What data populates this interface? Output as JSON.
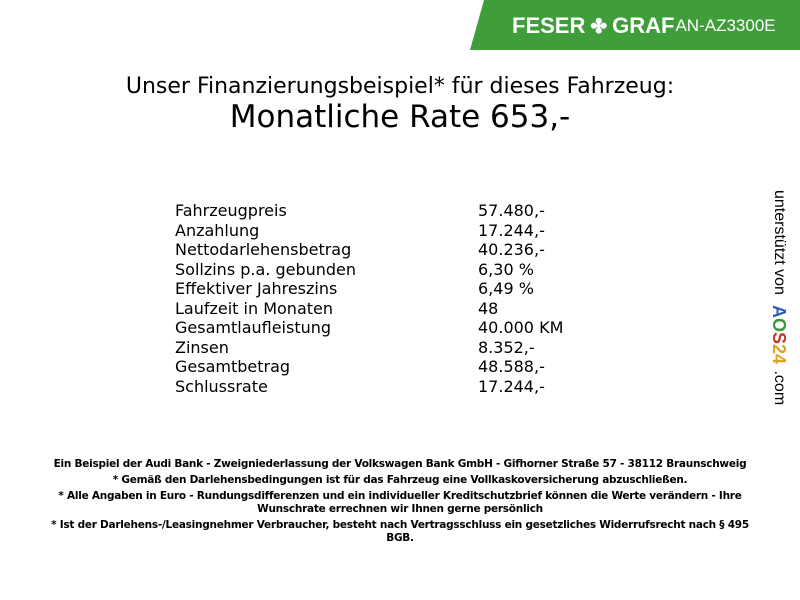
{
  "header": {
    "brand_left": "FESER",
    "brand_right": "GRAF",
    "clover_icon": "clover-icon",
    "code": "AN-AZ3300E",
    "color": "#3f9e3a"
  },
  "title": {
    "line1": "Unser Finanzierungsbeispiel* für dieses Fahrzeug:",
    "line2": "Monatliche Rate 653,-"
  },
  "rows": [
    {
      "label": "Fahrzeugpreis",
      "value": "57.480,-"
    },
    {
      "label": "Anzahlung",
      "value": "17.244,-"
    },
    {
      "label": "Nettodarlehensbetrag",
      "value": "40.236,-"
    },
    {
      "label": "Sollzins p.a. gebunden",
      "value": "6,30 %"
    },
    {
      "label": "Effektiver Jahreszins",
      "value": "6,49 %"
    },
    {
      "label": "Laufzeit in Monaten",
      "value": "48"
    },
    {
      "label": "Gesamtlaufleistung",
      "value": "40.000 KM"
    },
    {
      "label": "Zinsen",
      "value": "8.352,-"
    },
    {
      "label": "Gesamtbetrag",
      "value": "48.588,-"
    },
    {
      "label": "Schlussrate",
      "value": "17.244,-"
    }
  ],
  "sponsor": {
    "prefix": "unterstützt von",
    "logo": "AOS24",
    "suffix": ".com"
  },
  "footer": [
    "Ein Beispiel der Audi Bank - Zweigniederlassung der Volkswagen Bank GmbH - Gifhorner Straße 57 - 38112 Braunschweig",
    "* Gemäß den Darlehensbedingungen ist für das Fahrzeug eine Vollkaskoversicherung abzuschließen.",
    "* Alle Angaben in Euro - Rundungsdifferenzen und ein individueller Kreditschutzbrief können die Werte verändern - Ihre Wunschrate errechnen wir Ihnen gerne persönlich",
    "* Ist der Darlehens-/Leasingnehmer Verbraucher, besteht nach Vertragsschluss ein gesetzliches Widerrufsrecht nach § 495 BGB."
  ]
}
